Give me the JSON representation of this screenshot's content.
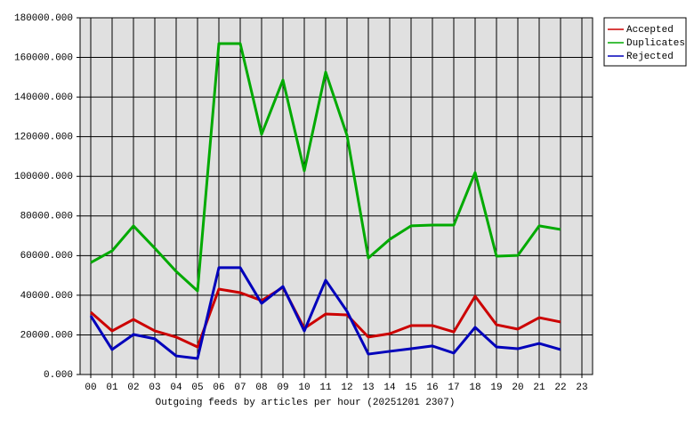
{
  "chart_data": {
    "type": "line",
    "xlabel": "Outgoing feeds by articles per hour (20251201 2307)",
    "categories": [
      "00",
      "01",
      "02",
      "03",
      "04",
      "05",
      "06",
      "07",
      "08",
      "09",
      "10",
      "11",
      "12",
      "13",
      "14",
      "15",
      "16",
      "17",
      "18",
      "19",
      "20",
      "21",
      "22",
      "23"
    ],
    "series": [
      {
        "name": "Accepted",
        "color": "#cc0000",
        "values": [
          31400,
          22000,
          27800,
          22000,
          18900,
          13900,
          43100,
          41300,
          37300,
          44000,
          23300,
          30500,
          30100,
          18900,
          20600,
          24700,
          24700,
          21500,
          39500,
          25100,
          22900,
          28700,
          26500,
          null
        ]
      },
      {
        "name": "Duplicates",
        "color": "#00aa00",
        "values": [
          56500,
          62400,
          75000,
          63700,
          52000,
          42200,
          167000,
          167000,
          121200,
          148600,
          102800,
          152600,
          120700,
          58800,
          68200,
          75000,
          75400,
          75400,
          101900,
          59700,
          60100,
          75000,
          73200,
          null
        ]
      },
      {
        "name": "Rejected",
        "color": "#0000bb",
        "values": [
          29600,
          12600,
          20200,
          18000,
          9400,
          8100,
          53900,
          53900,
          35900,
          44400,
          22000,
          47600,
          31900,
          10300,
          11700,
          13000,
          14400,
          10800,
          23800,
          13900,
          13000,
          15700,
          12600,
          null
        ]
      }
    ],
    "ylim": [
      0,
      180000
    ],
    "yticks": [
      {
        "value": 0,
        "label": "0.000"
      },
      {
        "value": 20000,
        "label": "20000.000"
      },
      {
        "value": 40000,
        "label": "40000.000"
      },
      {
        "value": 60000,
        "label": "60000.000"
      },
      {
        "value": 80000,
        "label": "80000.000"
      },
      {
        "value": 100000,
        "label": "100000.000"
      },
      {
        "value": 120000,
        "label": "120000.000"
      },
      {
        "value": 140000,
        "label": "140000.000"
      },
      {
        "value": 160000,
        "label": "160000.000"
      },
      {
        "value": 180000,
        "label": "180000.000"
      }
    ],
    "grid": true,
    "legend": "top-right"
  }
}
